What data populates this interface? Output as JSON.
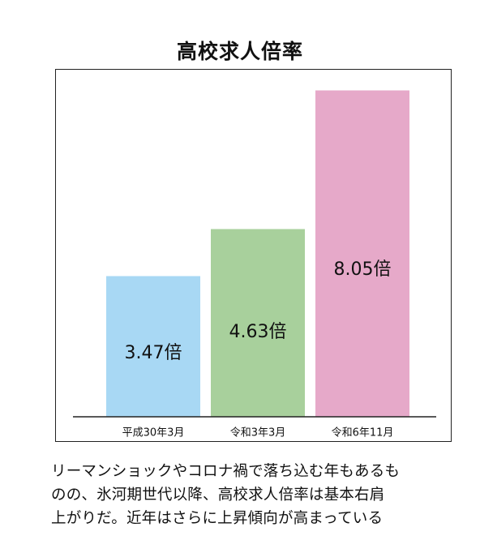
{
  "chart_data": {
    "type": "bar",
    "title": "高校求人倍率",
    "categories": [
      "平成30年3月",
      "令和3年3月",
      "令和6年11月"
    ],
    "values": [
      3.47,
      4.63,
      8.05
    ],
    "value_labels": [
      "3.47倍",
      "4.63倍",
      "8.05倍"
    ],
    "colors": [
      "#a8d8f4",
      "#a8d09c",
      "#e6a9c9"
    ],
    "ylim": [
      0,
      8.6
    ],
    "grid": false,
    "legend": "none"
  },
  "caption": {
    "lines": [
      "リーマンショックやコロナ禍で落ち込む年もあるも",
      "のの、氷河期世代以降、高校求人倍率は基本右肩",
      "上がりだ。近年はさらに上昇傾向が高まっている"
    ]
  }
}
